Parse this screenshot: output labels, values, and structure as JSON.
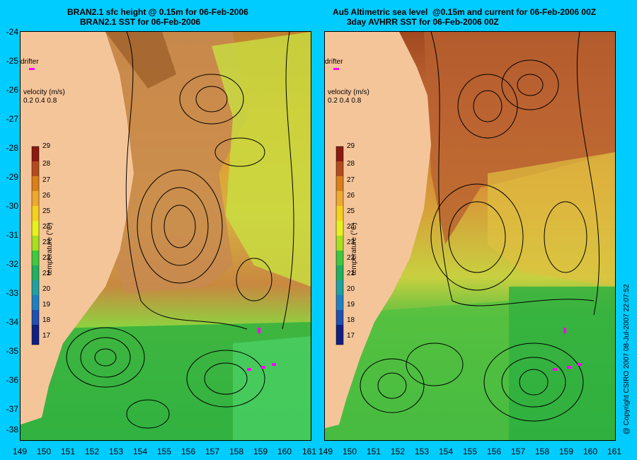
{
  "left_panel": {
    "title_line1": "BRAN2.1 sfc height @ 0.15m for 06-Feb-2006",
    "title_line2": "BRAN2.1 SST for 06-Feb-2006",
    "drifter_label": "drifter",
    "velocity_label": "velocity (m/s)",
    "velocity_scale": "0.2 0.4 0.8",
    "colorbar_title": "temperature (°C)"
  },
  "right_panel": {
    "title_line1": "Au5 Altimetric sea level  @0.15m and current for 06-Feb-2006 00Z",
    "title_line2": "3day AVHRR SST for 06-Feb-2006 00Z",
    "drifter_label": "drifter",
    "velocity_label": "velocity (m/s)",
    "velocity_scale": "0.2 0.4 0.8",
    "colorbar_title": "temperature (°C)"
  },
  "latitude_ticks": [
    "-24",
    "-25",
    "-26",
    "-27",
    "-28",
    "-29",
    "-30",
    "-31",
    "-32",
    "-33",
    "-34",
    "-35",
    "-36",
    "-37",
    "-38"
  ],
  "longitude_ticks_left": [
    "149",
    "150",
    "151",
    "152",
    "153",
    "154",
    "155",
    "156",
    "157",
    "158",
    "159",
    "160",
    "161"
  ],
  "longitude_ticks_right": [
    "149",
    "150",
    "151",
    "152",
    "153",
    "154",
    "155",
    "156",
    "157",
    "158",
    "159",
    "160",
    "161"
  ],
  "colorbar_ticks": [
    "29",
    "28",
    "27",
    "26",
    "25",
    "24",
    "23",
    "22",
    "21",
    "20",
    "19",
    "18",
    "17"
  ],
  "colorbar_colors": [
    "#8b1a10",
    "#b34a1e",
    "#d9801c",
    "#f0a830",
    "#f5d020",
    "#e8f020",
    "#a8e020",
    "#40c840",
    "#20b060",
    "#20a0a0",
    "#2080c0",
    "#2050b0",
    "#102080"
  ],
  "colors": {
    "background": "#00ccff",
    "land": "#f5c59a",
    "drifter": "#ff00ff"
  },
  "copyright": "@ Copyright CSIRO 2007  08-Jul-2007 22:07:52"
}
